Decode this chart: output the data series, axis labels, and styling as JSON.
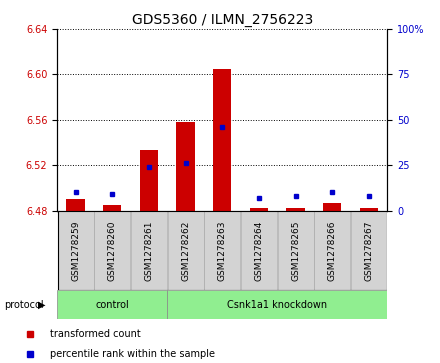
{
  "title": "GDS5360 / ILMN_2756223",
  "samples": [
    "GSM1278259",
    "GSM1278260",
    "GSM1278261",
    "GSM1278262",
    "GSM1278263",
    "GSM1278264",
    "GSM1278265",
    "GSM1278266",
    "GSM1278267"
  ],
  "red_values": [
    6.4905,
    6.485,
    6.533,
    6.558,
    6.605,
    6.482,
    6.482,
    6.487,
    6.482
  ],
  "blue_values": [
    10,
    9,
    24,
    26,
    46,
    7,
    8,
    10,
    8
  ],
  "baseline": 6.48,
  "ylim_left": [
    6.48,
    6.64
  ],
  "ylim_right": [
    0,
    100
  ],
  "yticks_left": [
    6.48,
    6.52,
    6.56,
    6.6,
    6.64
  ],
  "yticks_right": [
    0,
    25,
    50,
    75,
    100
  ],
  "control_count": 3,
  "knockdown_count": 6,
  "groups": [
    {
      "label": "control",
      "start": 0,
      "end": 3
    },
    {
      "label": "Csnk1a1 knockdown",
      "start": 3,
      "end": 9
    }
  ],
  "legend_items": [
    {
      "label": "transformed count",
      "color": "#cc0000"
    },
    {
      "label": "percentile rank within the sample",
      "color": "#0000cc"
    }
  ],
  "bar_width": 0.5,
  "red_color": "#cc0000",
  "blue_color": "#0000cc",
  "title_fontsize": 10,
  "tick_fontsize": 7,
  "label_fontsize": 8,
  "protocol_label": "protocol",
  "background_color": "#d3d3d3",
  "group_color": "#90ee90"
}
